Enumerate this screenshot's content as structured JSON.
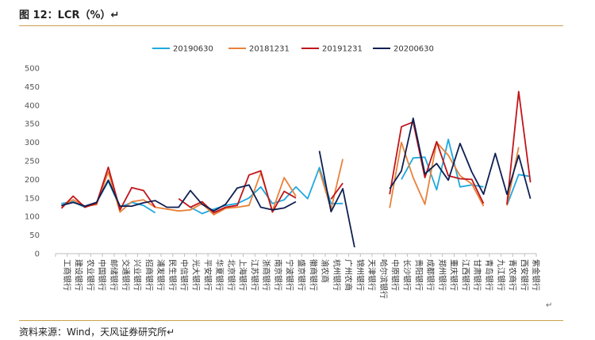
{
  "header": {
    "title": "图 12：LCR（%）↵"
  },
  "footer": {
    "source": "资料来源：Wind，天风证券研究所↵",
    "return_mark": "↵"
  },
  "colors": {
    "rule": "#c9a24a"
  },
  "chart_data": {
    "type": "line",
    "title": "",
    "xlabel": "",
    "ylabel": "",
    "ylim": [
      0,
      500
    ],
    "yticks": [
      0,
      50,
      100,
      150,
      200,
      250,
      300,
      350,
      400,
      450,
      500
    ],
    "grid": false,
    "legend_position": "top-center",
    "categories": [
      "工商银行",
      "建设银行",
      "农业银行",
      "中国银行",
      "邮储银行",
      "交通银行",
      "兴业银行",
      "招商银行",
      "浦发银行",
      "民生银行",
      "中信银行",
      "光大银行",
      "平安银行",
      "华夏银行",
      "北京银行",
      "上海银行",
      "江苏银行",
      "浙商银行",
      "南京银行",
      "宁波银行",
      "盛京银行",
      "徽商银行",
      "渝农商",
      "杭州银行",
      "广州农商",
      "锦州银行",
      "天津银行",
      "哈尔滨银行",
      "中原银行",
      "长沙银行",
      "贵阳银行",
      "成都银行",
      "郑州银行",
      "重庆银行",
      "江西银行",
      "甘肃银行",
      "青岛银行",
      "九江银行",
      "青农商行",
      "西安银行",
      "紫金银行"
    ],
    "series": [
      {
        "name": "20190630",
        "color": "#1fa8e0",
        "values": [
          135,
          140,
          125,
          138,
          195,
          125,
          138,
          130,
          110,
          null,
          null,
          125,
          108,
          120,
          130,
          135,
          150,
          180,
          135,
          145,
          180,
          148,
          232,
          135,
          135,
          null,
          null,
          null,
          null,
          200,
          258,
          260,
          172,
          308,
          180,
          185,
          180,
          null,
          130,
          213,
          208
        ]
      },
      {
        "name": "20181231",
        "color": "#e8823a",
        "values": [
          128,
          145,
          128,
          132,
          220,
          112,
          140,
          145,
          125,
          120,
          115,
          118,
          135,
          105,
          122,
          125,
          130,
          218,
          115,
          205,
          155,
          null,
          225,
          120,
          255,
          null,
          null,
          null,
          123,
          300,
          205,
          133,
          300,
          265,
          210,
          188,
          128,
          null,
          130,
          287,
          null
        ]
      },
      {
        "name": "20191231",
        "color": "#c0151a",
        "values": [
          122,
          155,
          125,
          135,
          233,
          118,
          178,
          170,
          125,
          null,
          148,
          125,
          140,
          110,
          125,
          130,
          212,
          223,
          112,
          168,
          150,
          null,
          null,
          147,
          190,
          null,
          null,
          null,
          160,
          342,
          355,
          205,
          302,
          210,
          202,
          200,
          135,
          null,
          133,
          437,
          192
        ]
      },
      {
        "name": "20200630",
        "color": "#0f1f52",
        "values": [
          130,
          138,
          128,
          138,
          198,
          128,
          128,
          137,
          143,
          125,
          125,
          170,
          133,
          115,
          133,
          177,
          185,
          125,
          118,
          123,
          140,
          null,
          277,
          113,
          175,
          17,
          null,
          null,
          175,
          223,
          365,
          215,
          243,
          198,
          297,
          220,
          160,
          270,
          160,
          265,
          148
        ]
      }
    ]
  }
}
